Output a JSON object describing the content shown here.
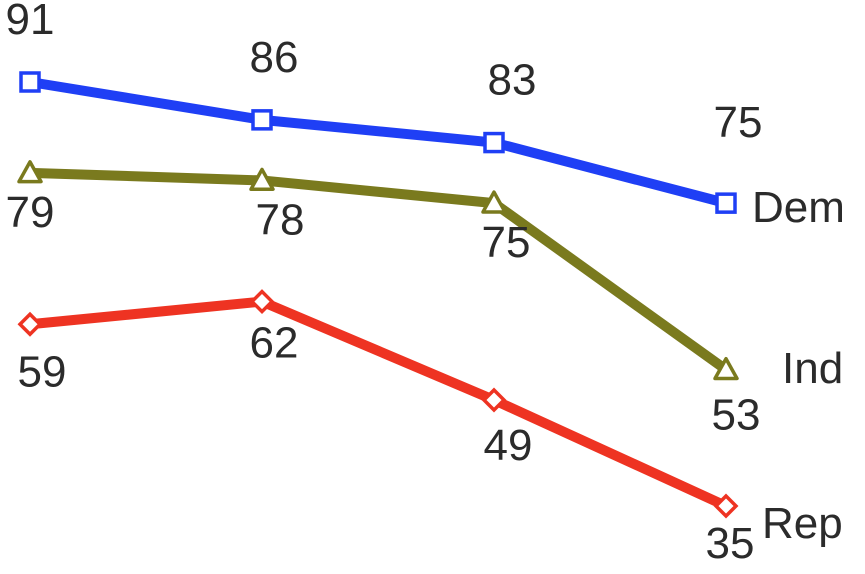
{
  "chart_data": {
    "type": "line",
    "x": [
      1,
      2,
      3,
      4
    ],
    "xlim": [
      1,
      4
    ],
    "ylim": [
      35,
      91
    ],
    "grid": false,
    "legend": "none",
    "series": [
      {
        "name": "Dem",
        "color": "#1f3ff5",
        "marker": "square",
        "values": [
          91,
          86,
          83,
          75
        ],
        "labels": [
          "91",
          "86",
          "83",
          "75"
        ]
      },
      {
        "name": "Ind",
        "color": "#7a7a1e",
        "marker": "triangle",
        "values": [
          79,
          78,
          75,
          53
        ],
        "labels": [
          "79",
          "78",
          "75",
          "53"
        ]
      },
      {
        "name": "Rep",
        "color": "#ee3322",
        "marker": "diamond",
        "values": [
          59,
          62,
          49,
          35
        ],
        "labels": [
          "59",
          "62",
          "49",
          "35"
        ]
      }
    ]
  }
}
